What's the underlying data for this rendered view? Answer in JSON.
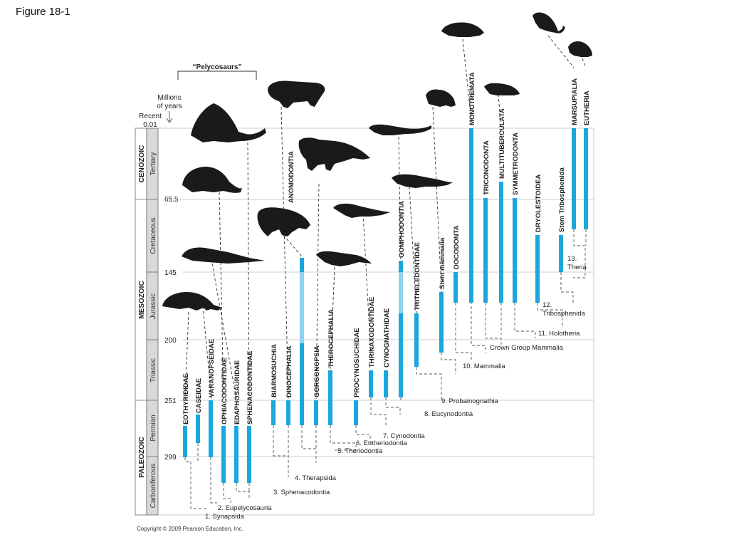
{
  "figure_title": "Figure 18-1",
  "copyright": "Copyright © 2009 Pearson Education, Inc.",
  "axis": {
    "header_line1": "Millions",
    "header_line2": "of years",
    "recent_label": "Recent",
    "recent_value": "0.01",
    "ticks": [
      "65.5",
      "145",
      "200",
      "251",
      "299"
    ]
  },
  "eras": [
    {
      "name": "CENOZOIC",
      "periods": [
        "Tertiary"
      ]
    },
    {
      "name": "MESOZOIC",
      "periods": [
        "Cretaceous",
        "Jurassic",
        "Triassic"
      ]
    },
    {
      "name": "PALEOZOIC",
      "periods": [
        "Permian",
        "Carboniferous"
      ]
    }
  ],
  "bracket_label": "“Pelycosaurs”",
  "taxa": [
    "EOTHYRIDIDAE",
    "CASEIDAE",
    "VARANOPSEIDAE",
    "OPHIACODONTIDAE",
    "EDAPHOSAURIDAE",
    "SPHENACODONTIDAE",
    "BIARMOSUCHIA",
    "DINOCEPHALIA",
    "ANOMODONTIA",
    "GORGONOPSIA",
    "THEROCEPHALIA",
    "PROCYNOSUCHIDAE",
    "THRINAXODONTIDAE",
    "CYNOGNATHIDAE",
    "GOMPHODONTIA",
    "TRITHELEDONTIDAE",
    "Stem mammalia",
    "DOCODONTA",
    "MONOTREMATA",
    "TRICONODONTA",
    "MULTITUBERCULATA",
    "SYMMETRODONTA",
    "DRYOLESTOIDEA",
    "Stem Tribosphenida",
    "MARSUPIALIA",
    "EUTHERIA"
  ],
  "nodes": [
    "1. Synapsida",
    "2. Eupelycosauria",
    "3. Sphenacodontia",
    "4. Therapsida",
    "5. Theriodontia",
    "6. Eutheriodontia",
    "7. Cynodontia",
    "8. Eucynodontia",
    "9. Probainognathia",
    "10. Mammalia",
    "Crown Group Mammalia",
    "11. Holotheria",
    "12.",
    "Tribosphenida",
    "13.",
    "Theria"
  ],
  "colors": {
    "bar": "#1aa7de",
    "bar_light": "#8fd3f0",
    "line": "#555555",
    "silhouette": "#1a1a1a"
  }
}
